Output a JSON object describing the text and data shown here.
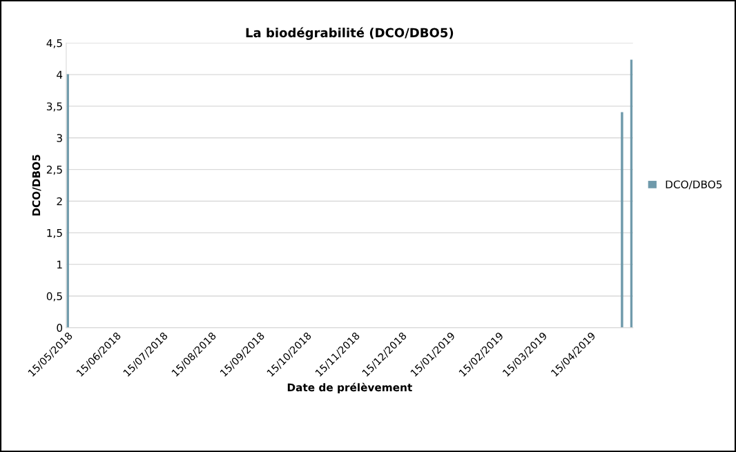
{
  "chart_data": {
    "type": "bar",
    "title": "La biodégrabilité (DCO/DBO5)",
    "xlabel": "Date de prélèvement",
    "ylabel": "DCO/DBO5",
    "x": [
      "2018-05-15",
      "2019-05-05",
      "2019-05-11"
    ],
    "series": [
      {
        "name": "DCO/DBO5",
        "color": "#6f9aab",
        "values": [
          4,
          3.4,
          4.23
        ]
      }
    ],
    "xlim": [
      "2018-05-14",
      "2019-05-12"
    ],
    "xticks": [
      {
        "value": "2018-05-15",
        "label": "15/05/2018"
      },
      {
        "value": "2018-06-15",
        "label": "15/06/2018"
      },
      {
        "value": "2018-07-15",
        "label": "15/07/2018"
      },
      {
        "value": "2018-08-15",
        "label": "15/08/2018"
      },
      {
        "value": "2018-09-15",
        "label": "15/09/2018"
      },
      {
        "value": "2018-10-15",
        "label": "15/10/2018"
      },
      {
        "value": "2018-11-15",
        "label": "15/11/2018"
      },
      {
        "value": "2018-12-15",
        "label": "15/12/2018"
      },
      {
        "value": "2019-01-15",
        "label": "15/01/2019"
      },
      {
        "value": "2019-02-15",
        "label": "15/02/2019"
      },
      {
        "value": "2019-03-15",
        "label": "15/03/2019"
      },
      {
        "value": "2019-04-15",
        "label": "15/04/2019"
      }
    ],
    "ylim": [
      0,
      4.5
    ],
    "yticks": [
      0,
      {
        "value": 0.5,
        "label": "0,5"
      },
      1,
      {
        "value": 1.5,
        "label": "1,5"
      },
      2,
      {
        "value": 2.5,
        "label": "2,5"
      },
      3,
      {
        "value": 3.5,
        "label": "3,5"
      },
      4,
      {
        "value": 4.5,
        "label": "4,5"
      }
    ],
    "grid": "y",
    "legend": "right"
  }
}
